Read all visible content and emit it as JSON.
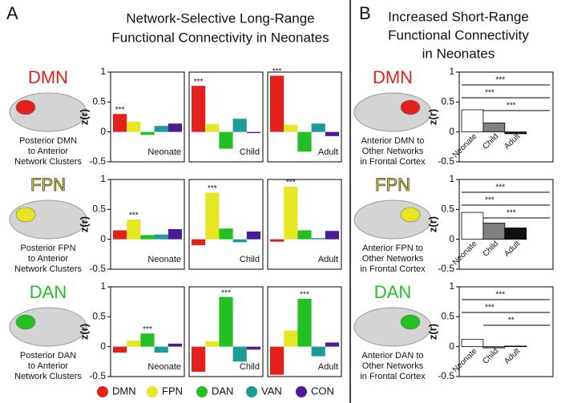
{
  "panel_a": {
    "label": "A",
    "title": [
      "Network-Selective Long-Range",
      "Functional Connectivity in Neonates"
    ],
    "legend": [
      {
        "name": "DMN",
        "color": "#e3201c"
      },
      {
        "name": "FPN",
        "color": "#e6e622"
      },
      {
        "name": "DAN",
        "color": "#22c022"
      },
      {
        "name": "VAN",
        "color": "#1c9b9b"
      },
      {
        "name": "CON",
        "color": "#4a1c96"
      }
    ]
  },
  "panel_b": {
    "label": "B",
    "title": [
      "Increased Short-Range",
      "Functional Connectivity",
      "in Neonates"
    ]
  },
  "rows": [
    {
      "network": "DMN",
      "color": "#e3201c",
      "description_a": [
        "Posterior DMN",
        "to Anterior",
        "Network Clusters"
      ],
      "description_b": [
        "Anterior DMN to",
        "Other Networks",
        "in Frontal Cortex"
      ]
    },
    {
      "network": "FPN",
      "color": "#e6e622",
      "outline": "#333333",
      "description_a": [
        "Posterior FPN",
        "to Anterior",
        "Network Clusters"
      ],
      "description_b": [
        "Anterior FPN to",
        "Other Networks",
        "in Frontal Cortex"
      ]
    },
    {
      "network": "DAN",
      "color": "#22c022",
      "description_a": [
        "Posterior DAN",
        "to Anterior",
        "Network Clusters"
      ],
      "description_b": [
        "Anterior DAN to",
        "Other Networks",
        "in Frontal Cortex"
      ]
    }
  ],
  "chart_data": [
    {
      "type": "bar",
      "label": "Neonate",
      "values": [
        0.3,
        0.17,
        -0.05,
        0.1,
        0.14
      ],
      "ylim": [
        -0.5,
        1
      ],
      "yticks": [
        -0.5,
        0,
        0.5,
        1
      ],
      "ylabel": "z(r)",
      "annotations": [
        {
          "index": 0,
          "text": "***"
        }
      ]
    },
    {
      "type": "bar",
      "label": "Child",
      "values": [
        0.77,
        0.13,
        -0.28,
        0.22,
        -0.02
      ],
      "ylim": [
        -0.5,
        1
      ],
      "annotations": [
        {
          "index": 0,
          "text": "***"
        }
      ]
    },
    {
      "type": "bar",
      "label": "Adult",
      "values": [
        0.94,
        0.12,
        -0.33,
        0.14,
        -0.07
      ],
      "ylim": [
        -0.5,
        1
      ],
      "annotations": [
        {
          "index": 0,
          "text": "***"
        }
      ]
    },
    {
      "type": "groupbar",
      "categories": [
        "Neonate",
        "Child",
        "Adult"
      ],
      "colors": [
        "#ffffff",
        "#808080",
        "#111111"
      ],
      "values": [
        0.37,
        0.15,
        -0.03
      ],
      "ylim": [
        -0.5,
        1
      ],
      "yticks": [
        -0.5,
        0,
        0.5,
        1
      ],
      "ylabel": "z(r)",
      "brackets": [
        {
          "from": 0,
          "to": 2,
          "text": "***"
        },
        {
          "from": 0,
          "to": 1,
          "text": "***"
        },
        {
          "from": 1,
          "to": 2,
          "text": "***"
        }
      ]
    },
    {
      "type": "bar",
      "label": "Neonate",
      "values": [
        0.15,
        0.33,
        0.07,
        0.08,
        0.17
      ],
      "ylim": [
        -0.5,
        1
      ],
      "yticks": [
        -0.5,
        0,
        0.5,
        1
      ],
      "ylabel": "z(r)",
      "annotations": [
        {
          "index": 1,
          "text": "***"
        }
      ]
    },
    {
      "type": "bar",
      "label": "Child",
      "values": [
        -0.1,
        0.78,
        0.18,
        -0.05,
        0.13
      ],
      "ylim": [
        -0.5,
        1
      ],
      "annotations": [
        {
          "index": 1,
          "text": "***"
        }
      ]
    },
    {
      "type": "bar",
      "label": "Adult",
      "values": [
        -0.04,
        0.88,
        0.15,
        0.02,
        0.14
      ],
      "ylim": [
        -0.5,
        1
      ],
      "annotations": [
        {
          "index": 1,
          "text": "***"
        }
      ]
    },
    {
      "type": "groupbar",
      "categories": [
        "Neonate",
        "Child",
        "Adult"
      ],
      "colors": [
        "#ffffff",
        "#808080",
        "#111111"
      ],
      "values": [
        0.45,
        0.27,
        0.19
      ],
      "ylim": [
        -0.5,
        1
      ],
      "yticks": [
        -0.5,
        0,
        0.5,
        1
      ],
      "ylabel": "z(r)",
      "brackets": [
        {
          "from": 0,
          "to": 2,
          "text": "***"
        },
        {
          "from": 0,
          "to": 1,
          "text": "***"
        },
        {
          "from": 1,
          "to": 2,
          "text": "***"
        }
      ]
    },
    {
      "type": "bar",
      "label": "Neonate",
      "values": [
        -0.1,
        0.1,
        0.22,
        -0.1,
        0.05
      ],
      "ylim": [
        -0.5,
        1
      ],
      "yticks": [
        -0.5,
        0,
        0.5,
        1
      ],
      "ylabel": "z(r)",
      "annotations": [
        {
          "index": 2,
          "text": "***"
        }
      ]
    },
    {
      "type": "bar",
      "label": "Child",
      "values": [
        -0.42,
        0.09,
        0.83,
        -0.25,
        -0.05
      ],
      "ylim": [
        -0.5,
        1
      ],
      "annotations": [
        {
          "index": 2,
          "text": "***"
        }
      ]
    },
    {
      "type": "bar",
      "label": "Adult",
      "values": [
        -0.47,
        0.27,
        0.8,
        -0.16,
        0.07
      ],
      "ylim": [
        -0.5,
        1
      ],
      "annotations": [
        {
          "index": 2,
          "text": "***"
        }
      ]
    },
    {
      "type": "groupbar",
      "categories": [
        "Neonate",
        "Child",
        "Adult"
      ],
      "colors": [
        "#ffffff",
        "#808080",
        "#111111"
      ],
      "values": [
        0.12,
        -0.02,
        0.01
      ],
      "ylim": [
        -0.5,
        1
      ],
      "yticks": [
        -0.5,
        0,
        0.5,
        1
      ],
      "ylabel": "z(r)",
      "brackets": [
        {
          "from": 0,
          "to": 2,
          "text": "***"
        },
        {
          "from": 0,
          "to": 1,
          "text": "***"
        },
        {
          "from": 1,
          "to": 2,
          "text": "**"
        }
      ]
    }
  ]
}
